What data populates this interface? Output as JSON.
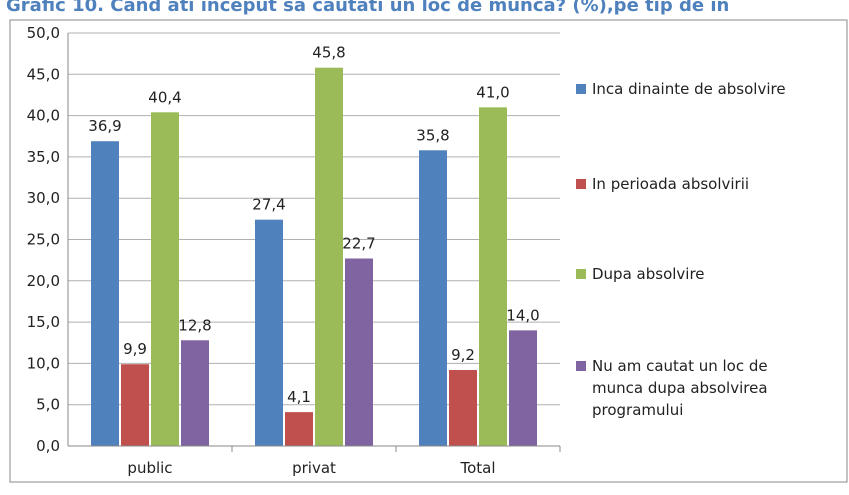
{
  "chart_data": {
    "type": "bar",
    "title": "Grafic 10. Cand ati inceput sa cautati un loc de munca? (%),pe tip de in",
    "categories": [
      "public",
      "privat",
      "Total"
    ],
    "series": [
      {
        "name": "Inca dinainte de absolvire",
        "color": "#4f81bd",
        "values": [
          36.9,
          27.4,
          35.8
        ],
        "value_labels": [
          "36,9",
          "27,4",
          "35,8"
        ]
      },
      {
        "name": "In perioada absolvirii",
        "color": "#c0504d",
        "values": [
          9.9,
          4.1,
          9.2
        ],
        "value_labels": [
          "9,9",
          "4,1",
          "9,2"
        ]
      },
      {
        "name": "Dupa absolvire",
        "color": "#9bbb59",
        "values": [
          40.4,
          45.8,
          41.0
        ],
        "value_labels": [
          "40,4",
          "45,8",
          "41,0"
        ]
      },
      {
        "name": "Nu am cautat un loc de munca dupa absolvirea programului",
        "color": "#8064a2",
        "values": [
          12.8,
          22.7,
          14.0
        ],
        "value_labels": [
          "12,8",
          "22,7",
          "14,0"
        ]
      }
    ],
    "ylim": [
      0,
      50
    ],
    "yticks": [
      {
        "value": 0,
        "label": "0,0"
      },
      {
        "value": 5,
        "label": "5,0"
      },
      {
        "value": 10,
        "label": "10,0"
      },
      {
        "value": 15,
        "label": "15,0"
      },
      {
        "value": 20,
        "label": "20,0"
      },
      {
        "value": 25,
        "label": "25,0"
      },
      {
        "value": 30,
        "label": "30,0"
      },
      {
        "value": 35,
        "label": "35,0"
      },
      {
        "value": 40,
        "label": "40,0"
      },
      {
        "value": 45,
        "label": "45,0"
      },
      {
        "value": 50,
        "label": "50,0"
      }
    ],
    "grid": true,
    "legend": "right"
  }
}
